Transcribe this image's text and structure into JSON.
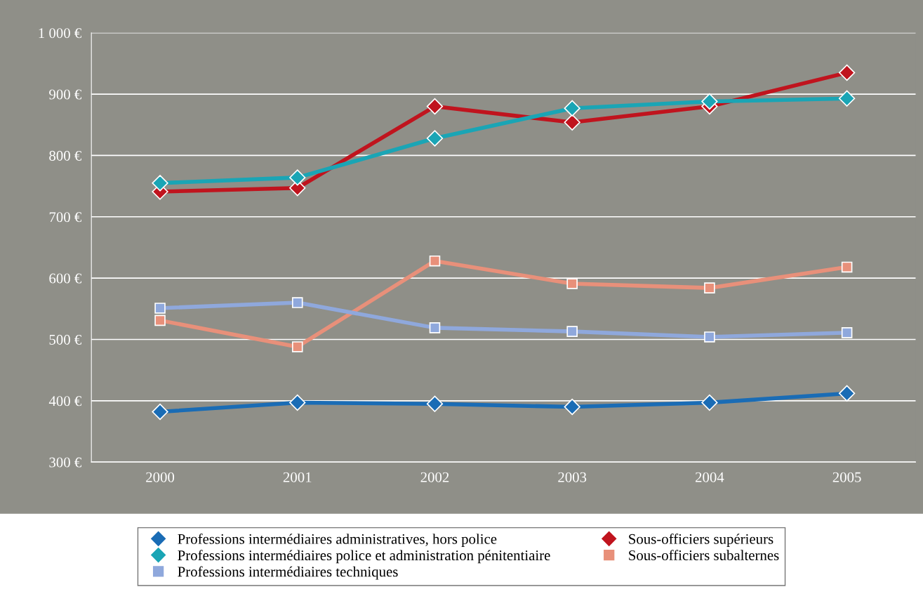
{
  "chart_data": {
    "type": "line",
    "categories": [
      "2000",
      "2001",
      "2002",
      "2003",
      "2004",
      "2005"
    ],
    "ylim": [
      300,
      1000
    ],
    "yticks": [
      {
        "value": 300,
        "label": "300 €"
      },
      {
        "value": 400,
        "label": "400 €"
      },
      {
        "value": 500,
        "label": "500 €"
      },
      {
        "value": 600,
        "label": "600 €"
      },
      {
        "value": 700,
        "label": "700 €"
      },
      {
        "value": 800,
        "label": "800 €"
      },
      {
        "value": 900,
        "label": "900 €"
      },
      {
        "value": 1000,
        "label": "1 000 €"
      }
    ],
    "grid": "y",
    "legend": "bottom",
    "line_style": "solid",
    "series": [
      {
        "name": "Professions intermédiaires administratives, hors police",
        "color": "#1a6cb5",
        "marker": "diamond",
        "values": [
          382,
          397,
          395,
          390,
          397,
          412
        ]
      },
      {
        "name": "Professions intermédiaires police et administration pénitentiaire",
        "color": "#1aa5b5",
        "marker": "diamond",
        "values": [
          755,
          764,
          828,
          877,
          888,
          893
        ]
      },
      {
        "name": "Professions intermédiaires techniques",
        "color": "#8fa8dc",
        "marker": "square",
        "values": [
          551,
          560,
          519,
          513,
          504,
          511
        ]
      },
      {
        "name": "Sous-officiers supérieurs",
        "color": "#c0141e",
        "marker": "diamond",
        "values": [
          741,
          747,
          880,
          854,
          880,
          935
        ]
      },
      {
        "name": "Sous-officiers subalternes",
        "color": "#e8907a",
        "marker": "square",
        "values": [
          531,
          488,
          628,
          591,
          584,
          618
        ]
      }
    ]
  }
}
